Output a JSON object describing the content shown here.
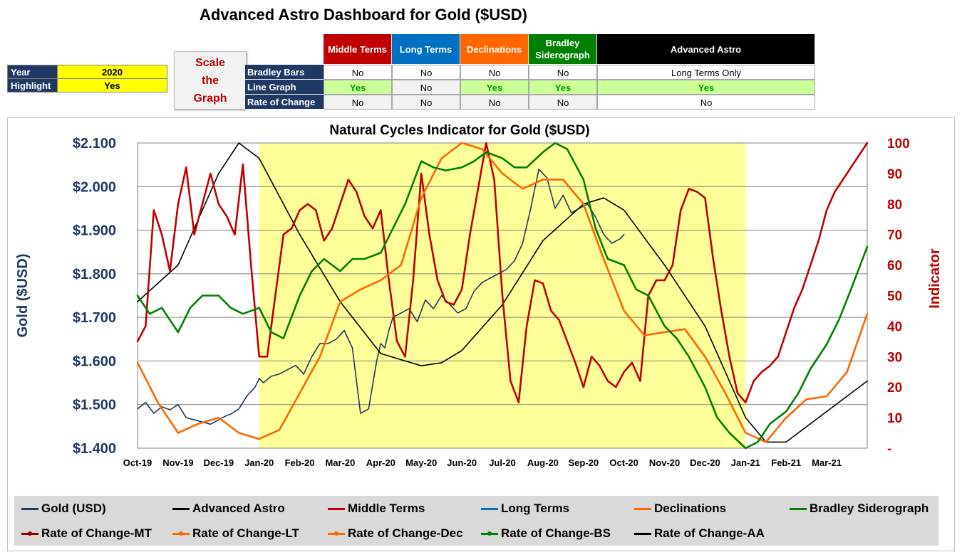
{
  "title": "Advanced Astro Dashboard for Gold ($USD)",
  "settings": {
    "year_label": "Year",
    "year_value": "2020",
    "highlight_label": "Highlight",
    "highlight_value": "Yes"
  },
  "scale_button": {
    "line1": "Scale",
    "line2": "the",
    "line3": "Graph"
  },
  "columns": [
    {
      "label": "Middle Terms",
      "color": "#c00000"
    },
    {
      "label": "Long Terms",
      "color": "#0070c0"
    },
    {
      "label": "Declinations",
      "color": "#ff6600"
    },
    {
      "label": "Bradley Siderograph",
      "color": "#008000"
    },
    {
      "label": "Advanced Astro",
      "color": "#000000"
    }
  ],
  "rows": [
    {
      "label": "Bradley Bars",
      "values": [
        "No",
        "No",
        "No",
        "No",
        "Long Terms Only"
      ],
      "green": [
        false,
        false,
        false,
        false,
        false
      ]
    },
    {
      "label": "Line Graph",
      "values": [
        "Yes",
        "No",
        "Yes",
        "Yes",
        "Yes"
      ],
      "green": [
        true,
        false,
        true,
        true,
        true
      ]
    },
    {
      "label": "Rate of Change",
      "values": [
        "No",
        "No",
        "No",
        "No",
        "No"
      ],
      "green": [
        false,
        false,
        false,
        false,
        false
      ]
    }
  ],
  "legend": [
    {
      "label": "Gold (USD)",
      "color": "#1f3864",
      "marker": false
    },
    {
      "label": "Advanced Astro",
      "color": "#000000",
      "marker": false
    },
    {
      "label": "Middle Terms",
      "color": "#c00000",
      "marker": false
    },
    {
      "label": "Long Terms",
      "color": "#0070c0",
      "marker": false
    },
    {
      "label": "Declinations",
      "color": "#ff6600",
      "marker": false
    },
    {
      "label": "Bradley Siderograph",
      "color": "#008000",
      "marker": false
    },
    {
      "label": "Rate of Change-MT",
      "color": "#8b0000",
      "marker": true
    },
    {
      "label": "Rate of Change-LT",
      "color": "#ff6600",
      "marker": true
    },
    {
      "label": "Rate of Change-Dec",
      "color": "#ff6600",
      "marker": true
    },
    {
      "label": "Rate of Change-BS",
      "color": "#008000",
      "marker": true
    },
    {
      "label": "Rate of Change-AA",
      "color": "#000000",
      "marker": false
    }
  ],
  "chart_data": {
    "type": "line",
    "title": "Natural Cycles Indicator for Gold ($USD)",
    "ylabel_left": "Gold ($USD)",
    "ylabel_right": "Indicator",
    "x_ticks": [
      "Oct-19",
      "Nov-19",
      "Dec-19",
      "Jan-20",
      "Feb-20",
      "Mar-20",
      "Apr-20",
      "May-20",
      "Jun-20",
      "Jul-20",
      "Aug-20",
      "Sep-20",
      "Oct-20",
      "Nov-20",
      "Dec-20",
      "Jan-21",
      "Feb-21",
      "Mar-21"
    ],
    "x_range": [
      0,
      18
    ],
    "ylim_left": [
      1400,
      2100
    ],
    "left_ticks": [
      "$1.400",
      "$1.500",
      "$1.600",
      "$1.700",
      "$1.800",
      "$1.900",
      "$2.000",
      "$2.100"
    ],
    "ylim_right": [
      0,
      100
    ],
    "right_ticks": [
      "-",
      "10",
      "20",
      "30",
      "40",
      "50",
      "60",
      "70",
      "80",
      "90",
      "100"
    ],
    "highlight_range": [
      3,
      15
    ],
    "highlight_color": "#ffff99",
    "series": [
      {
        "name": "Gold (USD)",
        "color": "#1f3864",
        "width": 1.6,
        "x": [
          0,
          0.2,
          0.4,
          0.6,
          0.8,
          1.0,
          1.2,
          1.4,
          1.6,
          1.8,
          2.0,
          2.1,
          2.2,
          2.3,
          2.5,
          2.7,
          2.9,
          3.0,
          3.1,
          3.3,
          3.5,
          3.7,
          3.9,
          4.1,
          4.3,
          4.5,
          4.7,
          4.9,
          5.1,
          5.2,
          5.3,
          5.5,
          5.7,
          5.9,
          6.0,
          6.1,
          6.2,
          6.3,
          6.5,
          6.7,
          6.9,
          7.1,
          7.3,
          7.5,
          7.7,
          7.9,
          8.1,
          8.3,
          8.5,
          8.7,
          8.9,
          9.1,
          9.3,
          9.5,
          9.7,
          9.9,
          10.1,
          10.3,
          10.5,
          10.7,
          10.9,
          11.1,
          11.3,
          11.5,
          11.7,
          11.9,
          12.0
        ],
        "values": [
          1490,
          1505,
          1480,
          1495,
          1488,
          1500,
          1470,
          1465,
          1460,
          1455,
          1465,
          1470,
          1475,
          1478,
          1490,
          1520,
          1540,
          1560,
          1550,
          1565,
          1570,
          1580,
          1590,
          1570,
          1610,
          1640,
          1640,
          1650,
          1670,
          1650,
          1630,
          1480,
          1490,
          1600,
          1640,
          1630,
          1670,
          1700,
          1710,
          1720,
          1690,
          1740,
          1720,
          1750,
          1730,
          1710,
          1720,
          1760,
          1780,
          1790,
          1800,
          1810,
          1830,
          1870,
          1950,
          2040,
          2020,
          1950,
          1980,
          1940,
          1950,
          1960,
          1930,
          1890,
          1870,
          1880,
          1890
        ]
      },
      {
        "name": "Advanced Astro",
        "color": "#000000",
        "width": 1.6,
        "x": [
          0,
          1,
          2,
          2.5,
          3,
          4,
          5,
          6,
          7,
          7.5,
          8,
          9,
          10,
          11,
          11.5,
          12,
          13,
          14,
          15,
          15.5,
          16,
          17,
          18
        ],
        "values": [
          48,
          60,
          90,
          100,
          95,
          70,
          48,
          31,
          27,
          28,
          32,
          47,
          68,
          80,
          82,
          78,
          60,
          40,
          10,
          2,
          2,
          12,
          22
        ]
      },
      {
        "name": "Middle Terms",
        "color": "#c00000",
        "width": 2.6,
        "x": [
          0,
          0.2,
          0.4,
          0.6,
          0.8,
          1.0,
          1.2,
          1.4,
          1.6,
          1.8,
          2.0,
          2.2,
          2.4,
          2.6,
          2.8,
          3.0,
          3.2,
          3.4,
          3.6,
          3.8,
          4.0,
          4.2,
          4.4,
          4.6,
          4.8,
          5.0,
          5.2,
          5.4,
          5.6,
          5.8,
          6.0,
          6.2,
          6.4,
          6.6,
          6.8,
          7.0,
          7.2,
          7.4,
          7.6,
          7.8,
          8.0,
          8.2,
          8.4,
          8.6,
          8.8,
          9.0,
          9.2,
          9.4,
          9.6,
          9.8,
          10.0,
          10.2,
          10.4,
          10.6,
          10.8,
          11.0,
          11.2,
          11.4,
          11.6,
          11.8,
          12.0,
          12.2,
          12.4,
          12.6,
          12.8,
          13.0,
          13.2,
          13.4,
          13.6,
          13.8,
          14.0,
          14.2,
          14.4,
          14.6,
          14.8,
          15.0,
          15.2,
          15.4,
          15.6,
          15.8,
          16.0,
          16.2,
          16.4,
          16.6,
          16.8,
          17.0,
          17.2,
          17.4,
          17.6,
          17.8,
          18.0
        ],
        "values": [
          35,
          40,
          78,
          70,
          58,
          80,
          92,
          70,
          80,
          90,
          80,
          76,
          70,
          93,
          60,
          30,
          30,
          50,
          70,
          72,
          78,
          80,
          78,
          68,
          72,
          80,
          88,
          84,
          76,
          72,
          78,
          55,
          35,
          30,
          55,
          90,
          70,
          55,
          48,
          47,
          52,
          70,
          85,
          100,
          88,
          50,
          22,
          15,
          40,
          55,
          54,
          45,
          42,
          35,
          28,
          20,
          30,
          27,
          22,
          20,
          25,
          28,
          22,
          50,
          55,
          55,
          60,
          78,
          85,
          84,
          82,
          62,
          45,
          30,
          18,
          15,
          22,
          25,
          27,
          30,
          38,
          46,
          52,
          60,
          68,
          78,
          84,
          88,
          92,
          96,
          100
        ]
      },
      {
        "name": "Declinations",
        "color": "#ff6600",
        "width": 2.6,
        "x": [
          0,
          0.5,
          1,
          1.5,
          2,
          2.5,
          3,
          3.5,
          4,
          4.5,
          5,
          5.5,
          6,
          6.5,
          7,
          7.5,
          8,
          8.5,
          9,
          9.5,
          10,
          10.5,
          11,
          11.5,
          12,
          12.5,
          13,
          13.5,
          14,
          14.5,
          15,
          15.5,
          16,
          16.5,
          17,
          17.5,
          18
        ],
        "values": [
          28,
          15,
          5,
          8,
          10,
          5,
          3,
          6,
          18,
          30,
          48,
          52,
          55,
          60,
          82,
          95,
          100,
          98,
          90,
          85,
          88,
          88,
          80,
          62,
          45,
          37,
          38,
          39,
          30,
          18,
          5,
          2,
          10,
          16,
          17,
          25,
          44
        ]
      },
      {
        "name": "Bradley Siderograph",
        "color": "#008000",
        "width": 2.6,
        "x": [
          0,
          0.3,
          0.6,
          1,
          1.3,
          1.6,
          2,
          2.3,
          2.6,
          3,
          3.3,
          3.6,
          4,
          4.3,
          4.6,
          5,
          5.3,
          5.6,
          6,
          6.3,
          6.6,
          7,
          7.3,
          7.6,
          8,
          8.3,
          8.6,
          9,
          9.3,
          9.6,
          10,
          10.3,
          10.6,
          11,
          11.3,
          11.6,
          12,
          12.3,
          12.6,
          13,
          13.3,
          13.6,
          14,
          14.3,
          14.6,
          15,
          15.3,
          15.6,
          16,
          16.3,
          16.6,
          17,
          17.3,
          17.6,
          18
        ],
        "values": [
          50,
          44,
          46,
          38,
          46,
          50,
          50,
          46,
          44,
          46,
          38,
          36,
          50,
          58,
          62,
          58,
          62,
          62,
          64,
          72,
          80,
          94,
          92,
          91,
          92,
          94,
          97,
          95,
          92,
          92,
          97,
          100,
          98,
          88,
          72,
          62,
          60,
          52,
          50,
          40,
          36,
          30,
          20,
          10,
          5,
          0,
          2,
          8,
          12,
          18,
          26,
          34,
          42,
          52,
          66
        ]
      },
      {
        "name": "Long Terms",
        "color": "#0070c0",
        "width": 2.2,
        "x": [],
        "values": []
      }
    ]
  }
}
